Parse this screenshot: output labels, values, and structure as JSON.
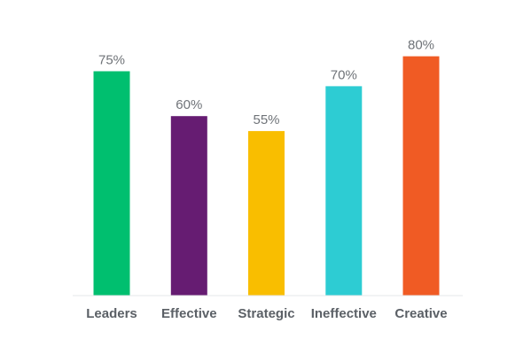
{
  "chart_data": {
    "type": "bar",
    "title": "",
    "xlabel": "",
    "ylabel": "",
    "ylim": [
      0,
      100
    ],
    "grid": false,
    "categories": [
      "Leaders",
      "Effective",
      "Strategic",
      "Ineffective",
      "Creative"
    ],
    "values": [
      75,
      60,
      55,
      70,
      80
    ],
    "value_labels": [
      "75%",
      "60%",
      "55%",
      "70%",
      "80%"
    ],
    "colors": [
      "#00bf6f",
      "#661c72",
      "#f9be00",
      "#2dccd3",
      "#f05b24"
    ],
    "baseline_color": "#e6e7e8"
  }
}
